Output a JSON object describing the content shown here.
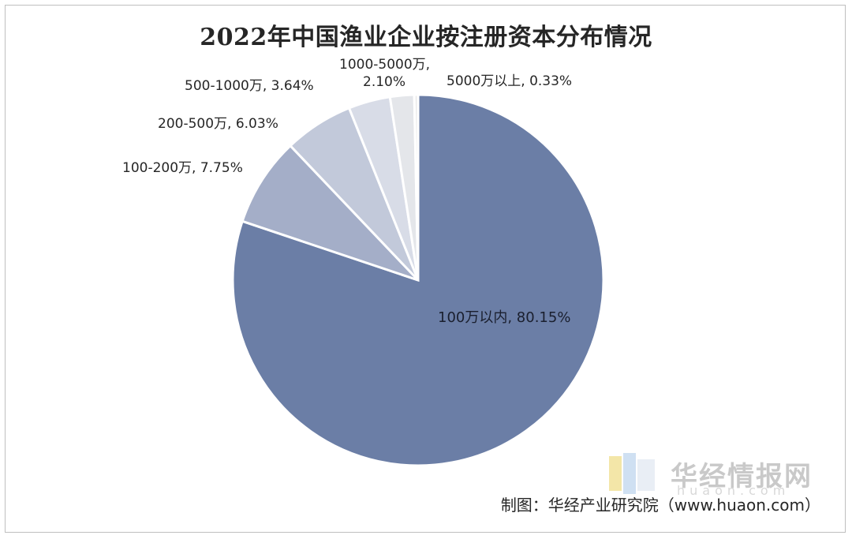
{
  "chart_data": {
    "type": "pie",
    "title": "2022年中国渔业企业按注册资本分布情况",
    "slices": [
      {
        "label": "100万以内",
        "value": 80.15,
        "text": "100万以内, 80.15%",
        "color": "#6b7ea6"
      },
      {
        "label": "100-200万",
        "value": 7.75,
        "text": "100-200万, 7.75%",
        "color": "#a4aec8"
      },
      {
        "label": "200-500万",
        "value": 6.03,
        "text": "200-500万, 6.03%",
        "color": "#c2c9da"
      },
      {
        "label": "500-1000万",
        "value": 3.64,
        "text": "500-1000万, 3.64%",
        "color": "#d8dce7"
      },
      {
        "label": "1000-5000万",
        "value": 2.1,
        "text": "1000-5000万,",
        "text2": "2.10%",
        "color": "#e4e6ea"
      },
      {
        "label": "5000万以上",
        "value": 0.33,
        "text": "5000万以上, 0.33%",
        "color": "#ebebeb"
      }
    ],
    "start": "12 o'clock",
    "direction": "clockwise"
  },
  "watermark": {
    "name": "华经情报网",
    "url": "huaon.com"
  },
  "source": "制图：华经产业研究院（www.huaon.com）"
}
